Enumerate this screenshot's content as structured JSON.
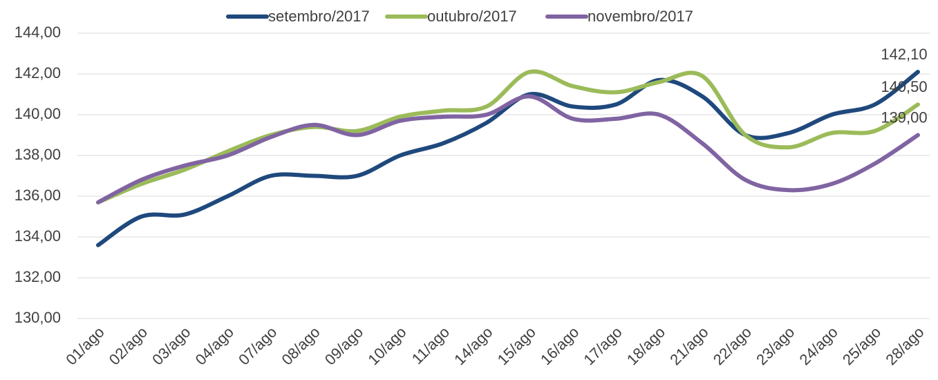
{
  "chart_data": {
    "type": "line",
    "categories": [
      "01/ago",
      "02/ago",
      "03/ago",
      "04/ago",
      "07/ago",
      "08/ago",
      "09/ago",
      "10/ago",
      "11/ago",
      "14/ago",
      "15/ago",
      "16/ago",
      "17/ago",
      "18/ago",
      "21/ago",
      "22/ago",
      "23/ago",
      "24/ago",
      "25/ago",
      "28/ago"
    ],
    "series": [
      {
        "name": "setembro/2017",
        "color": "#1f497d",
        "values": [
          133.6,
          135.0,
          135.1,
          136.0,
          137.0,
          137.0,
          137.0,
          138.0,
          138.6,
          139.6,
          141.0,
          140.4,
          140.5,
          141.7,
          140.9,
          139.0,
          139.1,
          140.0,
          140.5,
          142.1
        ],
        "value_labels": [
          null,
          null,
          null,
          null,
          null,
          null,
          null,
          null,
          null,
          null,
          null,
          null,
          null,
          null,
          null,
          null,
          null,
          null,
          null,
          "142,10"
        ]
      },
      {
        "name": "outubro/2017",
        "color": "#9bbb59",
        "values": [
          135.7,
          136.6,
          137.3,
          138.2,
          139.0,
          139.4,
          139.2,
          139.9,
          140.2,
          140.4,
          142.1,
          141.4,
          141.1,
          141.6,
          141.9,
          139.0,
          138.4,
          139.1,
          139.2,
          140.5
        ],
        "value_labels": [
          null,
          null,
          null,
          null,
          null,
          null,
          null,
          null,
          null,
          null,
          null,
          null,
          null,
          null,
          null,
          null,
          null,
          null,
          null,
          "140,50"
        ]
      },
      {
        "name": "novembro/2017",
        "color": "#8064a2",
        "values": [
          135.7,
          136.8,
          137.5,
          138.0,
          138.9,
          139.5,
          139.0,
          139.7,
          139.9,
          140.0,
          140.9,
          139.8,
          139.8,
          140.0,
          138.6,
          136.8,
          136.3,
          136.6,
          137.6,
          139.0
        ],
        "value_labels": [
          null,
          null,
          null,
          null,
          null,
          null,
          null,
          null,
          null,
          null,
          null,
          null,
          null,
          null,
          null,
          null,
          null,
          null,
          null,
          "139,00"
        ]
      }
    ],
    "ylim": [
      130,
      144
    ],
    "yticks": [
      {
        "value": 130,
        "label": "130,00"
      },
      {
        "value": 132,
        "label": "132,00"
      },
      {
        "value": 134,
        "label": "134,00"
      },
      {
        "value": 136,
        "label": "136,00"
      },
      {
        "value": 138,
        "label": "138,00"
      },
      {
        "value": 140,
        "label": "140,00"
      },
      {
        "value": 142,
        "label": "142,00"
      },
      {
        "value": 144,
        "label": "144,00"
      }
    ],
    "grid": true,
    "legend": "top"
  }
}
